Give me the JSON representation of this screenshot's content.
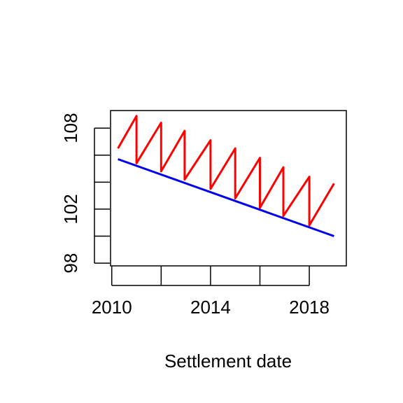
{
  "chart_data": {
    "type": "line",
    "title": "",
    "xlabel": "Settlement date",
    "ylabel": "",
    "xlim": [
      2009.95,
      2019.5
    ],
    "ylim": [
      97.8,
      109.3
    ],
    "grid": false,
    "legend": "none",
    "x_ticks": [
      2010,
      2012,
      2014,
      2016,
      2018
    ],
    "x_tick_labels": [
      "2010",
      "",
      "2014",
      "",
      "2018"
    ],
    "y_ticks": [
      98,
      100,
      102,
      104,
      106,
      108
    ],
    "y_tick_labels": [
      "98",
      "",
      "102",
      "",
      "",
      "108"
    ],
    "series": [
      {
        "color": "#ff0000",
        "x": [
          2010.25,
          2011.0,
          2011.0,
          2012.0,
          2012.0,
          2012.95,
          2012.95,
          2014.0,
          2014.0,
          2015.0,
          2015.0,
          2016.0,
          2016.0,
          2016.95,
          2016.95,
          2018.0,
          2018.0,
          2019.0
        ],
        "y": [
          106.5,
          108.9,
          105.4,
          108.4,
          104.8,
          107.8,
          104.2,
          107.1,
          103.5,
          106.5,
          102.8,
          105.8,
          102.1,
          105.1,
          101.5,
          104.4,
          100.8,
          103.9
        ]
      },
      {
        "color": "#0000ee",
        "x": [
          2010.25,
          2019.0
        ],
        "y": [
          105.7,
          100.0
        ]
      }
    ]
  }
}
